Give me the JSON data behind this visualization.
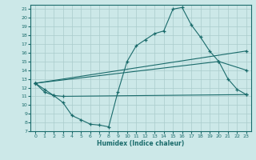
{
  "xlabel": "Humidex (Indice chaleur)",
  "bg_color": "#cce8e8",
  "line_color": "#1a6b6b",
  "grid_color": "#aacccc",
  "xlim": [
    -0.5,
    23.5
  ],
  "ylim": [
    7,
    21.5
  ],
  "xticks": [
    0,
    1,
    2,
    3,
    4,
    5,
    6,
    7,
    8,
    9,
    10,
    11,
    12,
    13,
    14,
    15,
    16,
    17,
    18,
    19,
    20,
    21,
    22,
    23
  ],
  "yticks": [
    7,
    8,
    9,
    10,
    11,
    12,
    13,
    14,
    15,
    16,
    17,
    18,
    19,
    20,
    21
  ],
  "lines": [
    {
      "x": [
        0,
        1,
        2,
        3,
        4,
        5,
        6,
        7,
        8,
        9,
        10,
        11,
        12,
        13,
        14,
        15,
        16,
        17,
        18,
        19,
        20,
        21,
        22,
        23
      ],
      "y": [
        12.5,
        11.8,
        11.1,
        10.3,
        8.8,
        8.3,
        7.8,
        7.7,
        7.5,
        11.5,
        15.0,
        16.8,
        17.5,
        18.2,
        18.5,
        21.0,
        21.2,
        19.2,
        17.8,
        16.2,
        15.0,
        13.0,
        11.8,
        11.2
      ]
    },
    {
      "x": [
        0,
        23
      ],
      "y": [
        12.5,
        16.2
      ]
    },
    {
      "x": [
        0,
        20,
        23
      ],
      "y": [
        12.5,
        15.0,
        14.0
      ]
    },
    {
      "x": [
        0,
        1,
        2,
        3,
        23
      ],
      "y": [
        12.5,
        11.5,
        11.1,
        11.0,
        11.2
      ]
    }
  ]
}
